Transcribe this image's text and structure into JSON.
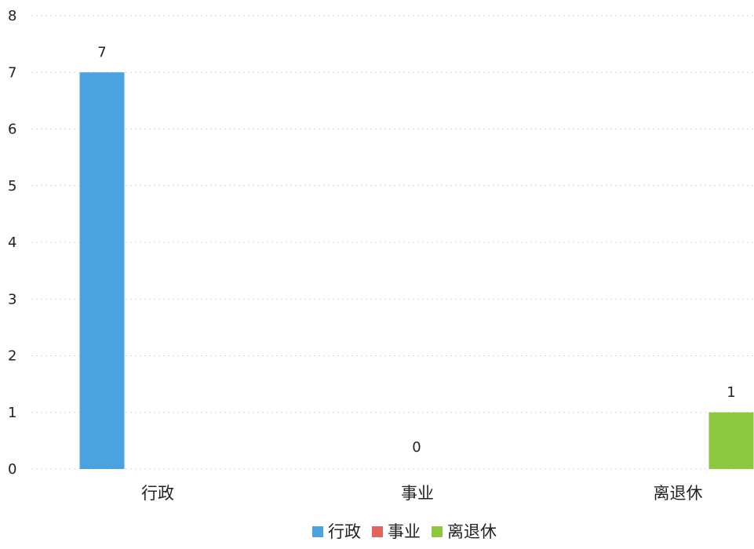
{
  "chart_data": {
    "type": "bar",
    "categories": [
      "行政",
      "事业",
      "离退休"
    ],
    "series": [
      {
        "name": "行政",
        "values": [
          7,
          null,
          null
        ],
        "color": "#4aa3df"
      },
      {
        "name": "事业",
        "values": [
          null,
          0,
          null
        ],
        "color": "#e0635c"
      },
      {
        "name": "离退休",
        "values": [
          null,
          null,
          1
        ],
        "color": "#8dc63f"
      }
    ],
    "data_labels": [
      "7",
      "0",
      "1"
    ],
    "y_ticks": [
      0,
      1,
      2,
      3,
      4,
      5,
      6,
      7,
      8
    ],
    "ylim": [
      0,
      8
    ],
    "grid": true,
    "legend_position": "bottom",
    "title": "",
    "xlabel": "",
    "ylabel": ""
  }
}
